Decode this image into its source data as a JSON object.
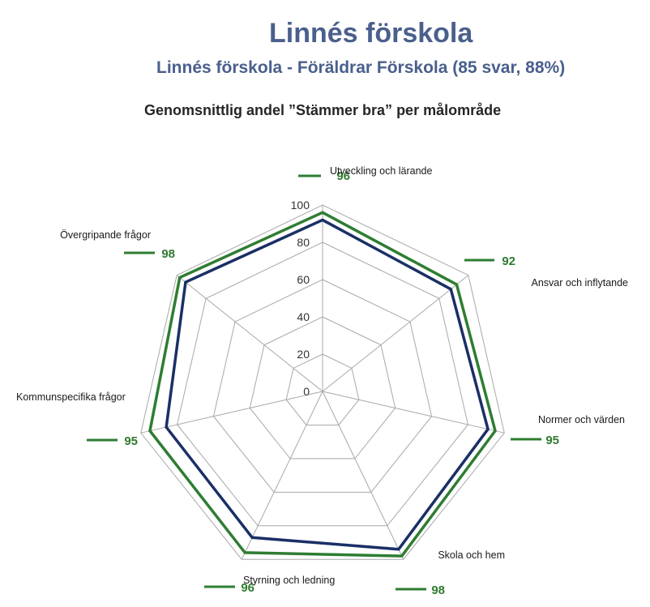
{
  "header": {
    "title": "Linnés förskola",
    "subtitle": "Linnés förskola - Föräldrar Förskola (85 svar, 88%)"
  },
  "chart_data": {
    "type": "radar",
    "title": "Genomsnittlig andel ”Stämmer bra” per målområde",
    "categories": [
      "Utveckling och lärande",
      "Ansvar och inflytande",
      "Normer och värden",
      "Skola och hem",
      "Styrning och ledning",
      "Kommunspecifika frågor",
      "Övergripande frågor"
    ],
    "rlim": [
      0,
      100
    ],
    "ticks": [
      "0",
      "20",
      "40",
      "60",
      "80",
      "100"
    ],
    "grid": true,
    "series": [
      {
        "values": [
          96,
          92,
          95,
          98,
          96,
          95,
          98
        ],
        "color": "#2e7d32"
      },
      {
        "values": [
          92,
          88,
          91,
          94,
          87,
          86,
          94
        ],
        "color": "#1a2f66"
      }
    ],
    "value_labels": [
      "96",
      "92",
      "95",
      "98",
      "96",
      "95",
      "98"
    ],
    "value_label_color": "#2e7d32"
  }
}
